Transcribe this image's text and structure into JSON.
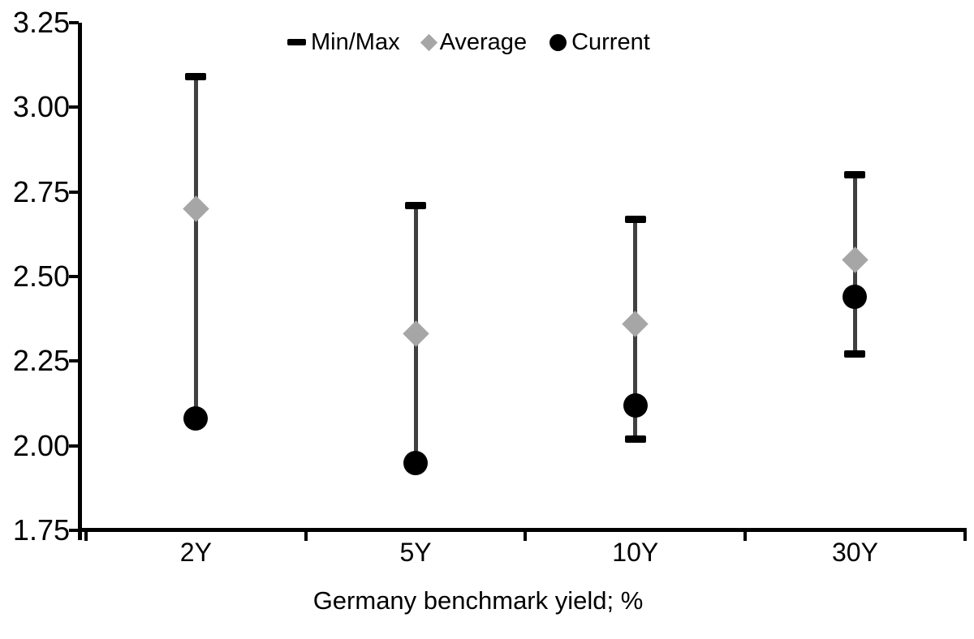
{
  "chart_data": {
    "type": "scatter",
    "subtype": "min-max-range-with-average-and-current-markers",
    "title": "",
    "xlabel": "Germany benchmark yield; %",
    "ylabel": "",
    "ylim": [
      1.75,
      3.25
    ],
    "y_tick_labels": [
      "3.25",
      "3.00",
      "2.75",
      "2.50",
      "2.25",
      "2.00",
      "1.75"
    ],
    "y_tick_values": [
      3.25,
      3.0,
      2.75,
      2.5,
      2.25,
      2.0,
      1.75
    ],
    "categories": [
      "2Y",
      "5Y",
      "10Y",
      "30Y"
    ],
    "series": [
      {
        "name": "Min/Max",
        "marker": "dash-capped-range",
        "min": [
          2.08,
          1.95,
          2.02,
          2.27
        ],
        "max": [
          3.09,
          2.71,
          2.67,
          2.8
        ]
      },
      {
        "name": "Average",
        "marker": "diamond",
        "values": [
          2.7,
          2.33,
          2.36,
          2.55
        ]
      },
      {
        "name": "Current",
        "marker": "circle",
        "values": [
          2.08,
          1.95,
          2.12,
          2.44
        ]
      }
    ],
    "legend": [
      {
        "label": "Min/Max",
        "marker": "dash",
        "color": "#000000"
      },
      {
        "label": "Average",
        "marker": "diamond",
        "color": "#a6a6a6"
      },
      {
        "label": "Current",
        "marker": "circle",
        "color": "#000000"
      }
    ],
    "legend_position": "top-center",
    "grid": false
  },
  "colors": {
    "axis": "#000000",
    "errorbar_line": "#404040",
    "cap_black": "#000000",
    "average_gray": "#a6a6a6",
    "current_black": "#000000",
    "background": "#ffffff",
    "text": "#000000"
  }
}
